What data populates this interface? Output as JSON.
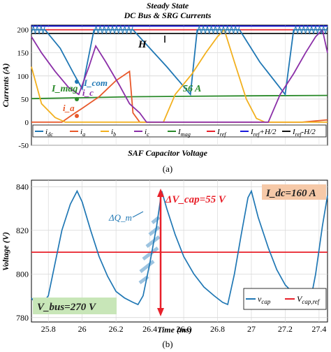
{
  "figure": {
    "panel_a_label": "(a)",
    "panel_b_label": "(b)"
  },
  "chart_data": [
    {
      "type": "line",
      "title": "Steady State",
      "subtitle": "DC Bus & SRG Currents",
      "ylabel": "Currents (A)",
      "xlabel": "",
      "ylim": [
        -50,
        210
      ],
      "yticks": [
        -50,
        0,
        50,
        100,
        150,
        200
      ],
      "xlim": [
        25.7,
        27.45
      ],
      "grid": true,
      "annotations": {
        "band_label": "H",
        "i_mag_label": "I_mag",
        "i_mag_value": "56 A",
        "i_com_label": "I_com",
        "i_c_label": "i_c",
        "i_a_label": "i_a"
      },
      "legend": [
        {
          "label": "i_dc",
          "color": "#1f77b4"
        },
        {
          "label": "i_a",
          "color": "#e8582a"
        },
        {
          "label": "i_b",
          "color": "#f2b01e"
        },
        {
          "label": "i_c",
          "color": "#8b2fa8"
        },
        {
          "label": "I_mag",
          "color": "#2a8a2a"
        },
        {
          "label": "I_ref",
          "color": "#e8202a"
        },
        {
          "label": "I_ref+H/2",
          "color": "#1a1adb"
        },
        {
          "label": "I_ref-H/2",
          "color": "#111111"
        }
      ],
      "series": [
        {
          "name": "I_ref",
          "color": "#e8202a",
          "values": [
            [
              25.7,
              200
            ],
            [
              27.45,
              200
            ]
          ]
        },
        {
          "name": "I_ref+H/2",
          "color": "#1a1adb",
          "values": [
            [
              25.7,
              208
            ],
            [
              27.45,
              208
            ]
          ]
        },
        {
          "name": "I_ref-H/2",
          "color": "#111111",
          "values": [
            [
              25.7,
              192
            ],
            [
              27.45,
              192
            ]
          ]
        },
        {
          "name": "I_mag",
          "color": "#2a8a2a",
          "values": [
            [
              25.7,
              51
            ],
            [
              26.0,
              53
            ],
            [
              26.3,
              55
            ],
            [
              26.6,
              56
            ],
            [
              27.0,
              57
            ],
            [
              27.45,
              58
            ]
          ]
        },
        {
          "name": "i_dc",
          "color": "#1f77b4",
          "values": [
            [
              25.7,
              200
            ],
            [
              25.78,
              200
            ],
            [
              25.87,
              160
            ],
            [
              25.95,
              105
            ],
            [
              26.0,
              72
            ],
            [
              26.07,
              200
            ],
            [
              26.3,
              200
            ],
            [
              26.5,
              120
            ],
            [
              26.64,
              60
            ],
            [
              26.68,
              200
            ],
            [
              26.93,
              200
            ],
            [
              27.05,
              130
            ],
            [
              27.2,
              60
            ],
            [
              27.25,
              200
            ],
            [
              27.45,
              200
            ]
          ]
        },
        {
          "name": "i_a",
          "color": "#e8582a",
          "values": [
            [
              25.7,
              0
            ],
            [
              25.88,
              0
            ],
            [
              25.95,
              18
            ],
            [
              26.0,
              30
            ],
            [
              26.1,
              55
            ],
            [
              26.2,
              90
            ],
            [
              26.28,
              110
            ],
            [
              26.3,
              20
            ],
            [
              26.34,
              0
            ],
            [
              27.3,
              0
            ],
            [
              27.45,
              5
            ]
          ]
        },
        {
          "name": "i_b",
          "color": "#f2b01e",
          "values": [
            [
              25.7,
              120
            ],
            [
              25.76,
              40
            ],
            [
              25.84,
              10
            ],
            [
              25.9,
              0
            ],
            [
              26.48,
              0
            ],
            [
              26.55,
              60
            ],
            [
              26.65,
              105
            ],
            [
              26.73,
              150
            ],
            [
              26.8,
              185
            ],
            [
              26.84,
              200
            ],
            [
              26.9,
              130
            ],
            [
              26.97,
              50
            ],
            [
              27.03,
              8
            ],
            [
              27.08,
              0
            ],
            [
              27.45,
              0
            ]
          ]
        },
        {
          "name": "i_c",
          "color": "#8b2fa8",
          "values": [
            [
              25.7,
              185
            ],
            [
              25.76,
              150
            ],
            [
              25.84,
              110
            ],
            [
              25.92,
              75
            ],
            [
              25.98,
              60
            ],
            [
              26.04,
              120
            ],
            [
              26.08,
              165
            ],
            [
              26.14,
              130
            ],
            [
              26.22,
              80
            ],
            [
              26.28,
              40
            ],
            [
              26.34,
              20
            ],
            [
              26.38,
              0
            ],
            [
              27.1,
              0
            ],
            [
              27.17,
              60
            ],
            [
              27.25,
              105
            ],
            [
              27.32,
              150
            ],
            [
              27.38,
              185
            ],
            [
              27.42,
              200
            ],
            [
              27.45,
              150
            ]
          ]
        }
      ]
    },
    {
      "type": "line",
      "title": "SAF Capacitor Voltage",
      "xlabel": "Time (ms)",
      "ylabel": "Voltage (V)",
      "xlim": [
        25.7,
        27.45
      ],
      "ylim": [
        778,
        843
      ],
      "xticks": [
        25.8,
        26,
        26.2,
        26.4,
        26.6,
        26.8,
        27,
        27.2,
        27.4
      ],
      "yticks": [
        780,
        800,
        820,
        840
      ],
      "grid": true,
      "annotations": {
        "dvcap": "ΔV_cap=55 V",
        "idc": "I_dc=160 A",
        "vbus": "V_bus=270 V",
        "dq": "ΔQ_m"
      },
      "legend": [
        {
          "label": "v_cap",
          "color": "#1f77b4"
        },
        {
          "label": "V_cap,ref",
          "color": "#e8202a"
        }
      ],
      "series": [
        {
          "name": "V_cap,ref",
          "color": "#e8202a",
          "values": [
            [
              25.7,
              810
            ],
            [
              27.45,
              810
            ]
          ]
        },
        {
          "name": "v_cap",
          "color": "#1f77b4",
          "values": [
            [
              25.7,
              789
            ],
            [
              25.72,
              787
            ],
            [
              25.74,
              788
            ],
            [
              25.76,
              786
            ],
            [
              25.78,
              788
            ],
            [
              25.8,
              790
            ],
            [
              25.84,
              805
            ],
            [
              25.88,
              820
            ],
            [
              25.93,
              832
            ],
            [
              25.97,
              838
            ],
            [
              26.0,
              833
            ],
            [
              26.05,
              820
            ],
            [
              26.1,
              808
            ],
            [
              26.15,
              799
            ],
            [
              26.2,
              792
            ],
            [
              26.25,
              789
            ],
            [
              26.3,
              787
            ],
            [
              26.33,
              786
            ],
            [
              26.36,
              790
            ],
            [
              26.4,
              805
            ],
            [
              26.44,
              822
            ],
            [
              26.47,
              838
            ],
            [
              26.5,
              830
            ],
            [
              26.55,
              818
            ],
            [
              26.6,
              808
            ],
            [
              26.66,
              800
            ],
            [
              26.72,
              794
            ],
            [
              26.78,
              790
            ],
            [
              26.83,
              787
            ],
            [
              26.86,
              786
            ],
            [
              26.9,
              800
            ],
            [
              26.94,
              818
            ],
            [
              26.98,
              835
            ],
            [
              27.0,
              838
            ],
            [
              27.04,
              826
            ],
            [
              27.1,
              812
            ],
            [
              27.15,
              802
            ],
            [
              27.2,
              795
            ],
            [
              27.25,
              791
            ],
            [
              27.3,
              789
            ],
            [
              27.35,
              788
            ],
            [
              27.38,
              800
            ],
            [
              27.42,
              822
            ],
            [
              27.45,
              836
            ]
          ]
        }
      ]
    }
  ]
}
